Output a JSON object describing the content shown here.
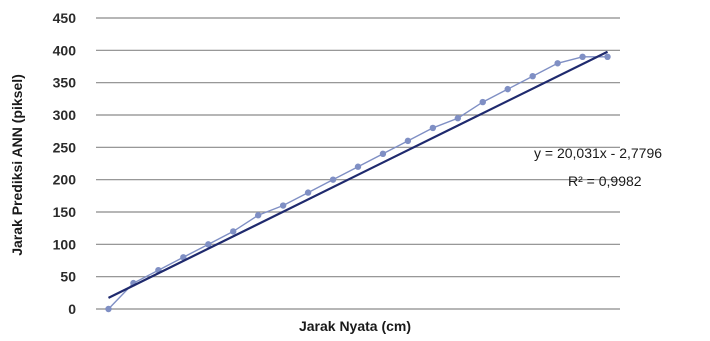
{
  "chart_data": {
    "type": "scatter",
    "xlabel": "Jarak Nyata (cm)",
    "ylabel": "Jarak Prediksi ANN (piksel)",
    "ylim": [
      0,
      450
    ],
    "xlim": [
      -0.5,
      20.5
    ],
    "yticks": [
      "0",
      "50",
      "100",
      "150",
      "200",
      "250",
      "300",
      "350",
      "400",
      "450"
    ],
    "grid": true,
    "series": [
      {
        "x": [
          0,
          1,
          2,
          3,
          4,
          5,
          6,
          7,
          8,
          9,
          10,
          11,
          12,
          13,
          14,
          15,
          16,
          17,
          18,
          19,
          20
        ],
        "y": [
          0,
          40,
          60,
          80,
          100,
          120,
          145,
          160,
          180,
          200,
          220,
          240,
          260,
          280,
          295,
          320,
          340,
          360,
          380,
          390,
          390
        ]
      }
    ],
    "trendline": {
      "slope": 20.031,
      "intercept": -2.7796
    },
    "annotations": {
      "equation": "y = 20,031x - 2,7796",
      "r2": "R² = 0,9982"
    },
    "colors": {
      "data": "#7f8fc4",
      "trend": "#1f2a6e",
      "grid": "#8a8a8a"
    }
  }
}
